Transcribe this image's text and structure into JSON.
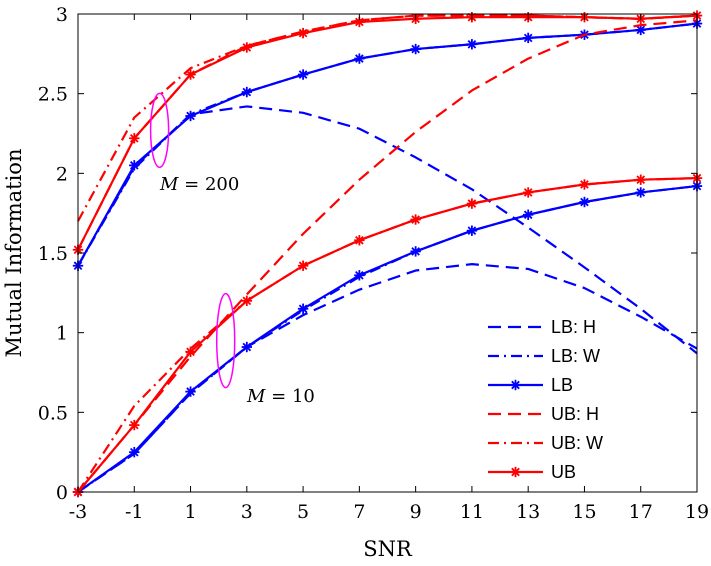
{
  "chart_data": {
    "type": "line",
    "title": "",
    "xlabel": "SNR",
    "ylabel": "Mutual Information",
    "xlim": [
      -3,
      19
    ],
    "ylim": [
      0,
      3
    ],
    "x_ticks": [
      "-3",
      "-1",
      "1",
      "3",
      "5",
      "7",
      "9",
      "11",
      "13",
      "15",
      "17",
      "19"
    ],
    "y_ticks": [
      "0",
      "0.5",
      "1",
      "1.5",
      "2",
      "2.5",
      "3"
    ],
    "grid": false,
    "legend_position": "lower-right",
    "x": [
      -3,
      -1,
      1,
      3,
      5,
      7,
      9,
      11,
      13,
      15,
      17,
      19
    ],
    "series": [
      {
        "name": "LB: H",
        "color": "#0000ff",
        "style": "dashed",
        "marker": "none",
        "group": "M=200",
        "values": [
          1.42,
          2.04,
          2.37,
          2.42,
          2.38,
          2.28,
          2.1,
          1.9,
          1.66,
          1.41,
          1.15,
          0.87
        ]
      },
      {
        "name": "LB: W",
        "color": "#0000ff",
        "style": "dashdot",
        "marker": "none",
        "group": "M=200",
        "values": [
          1.42,
          2.03,
          2.37,
          2.51,
          2.62,
          2.72,
          2.78,
          2.81,
          2.85,
          2.87,
          2.9,
          2.94
        ]
      },
      {
        "name": "LB",
        "color": "#0000ff",
        "style": "solid",
        "marker": "asterisk",
        "group": "M=200",
        "values": [
          1.42,
          2.05,
          2.36,
          2.51,
          2.62,
          2.72,
          2.78,
          2.81,
          2.85,
          2.87,
          2.9,
          2.94
        ]
      },
      {
        "name": "UB: H",
        "color": "#ff0000",
        "style": "dashed",
        "marker": "none",
        "group": "M=200",
        "values": [
          1.52,
          2.22,
          2.62,
          2.8,
          2.89,
          2.96,
          2.99,
          2.99,
          2.99,
          2.98,
          2.97,
          2.99
        ]
      },
      {
        "name": "UB: W",
        "color": "#ff0000",
        "style": "dashdot",
        "marker": "none",
        "group": "M=200",
        "values": [
          1.7,
          2.35,
          2.66,
          2.8,
          2.89,
          2.96,
          2.99,
          2.99,
          2.99,
          2.98,
          2.97,
          2.99
        ]
      },
      {
        "name": "UB",
        "color": "#ff0000",
        "style": "solid",
        "marker": "asterisk",
        "group": "M=200",
        "values": [
          1.52,
          2.22,
          2.62,
          2.79,
          2.88,
          2.95,
          2.97,
          2.98,
          2.98,
          2.98,
          2.97,
          2.99
        ]
      },
      {
        "name": "LB: H",
        "color": "#0000ff",
        "style": "dashed",
        "marker": "none",
        "group": "M=10",
        "values": [
          0.0,
          0.24,
          0.62,
          0.91,
          1.11,
          1.27,
          1.39,
          1.43,
          1.4,
          1.28,
          1.1,
          0.9
        ]
      },
      {
        "name": "LB: W",
        "color": "#0000ff",
        "style": "dashdot",
        "marker": "none",
        "group": "M=10",
        "values": [
          0.0,
          0.24,
          0.62,
          0.91,
          1.14,
          1.35,
          1.51,
          1.64,
          1.74,
          1.82,
          1.88,
          1.92
        ]
      },
      {
        "name": "LB",
        "color": "#0000ff",
        "style": "solid",
        "marker": "asterisk",
        "group": "M=10",
        "values": [
          0.0,
          0.25,
          0.63,
          0.91,
          1.15,
          1.36,
          1.51,
          1.64,
          1.74,
          1.82,
          1.88,
          1.92
        ]
      },
      {
        "name": "UB: H",
        "color": "#ff0000",
        "style": "dashed",
        "marker": "none",
        "group": "M=10",
        "values": [
          0.0,
          0.42,
          0.85,
          1.24,
          1.62,
          1.96,
          2.26,
          2.52,
          2.72,
          2.87,
          2.93,
          2.96
        ]
      },
      {
        "name": "UB: W",
        "color": "#ff0000",
        "style": "dashdot",
        "marker": "none",
        "group": "M=10",
        "values": [
          0.0,
          0.54,
          0.9,
          1.2,
          1.42,
          1.58,
          1.71,
          1.81,
          1.88,
          1.93,
          1.96,
          1.97
        ]
      },
      {
        "name": "UB",
        "color": "#ff0000",
        "style": "solid",
        "marker": "asterisk",
        "group": "M=10",
        "values": [
          0.0,
          0.42,
          0.88,
          1.2,
          1.42,
          1.58,
          1.71,
          1.81,
          1.88,
          1.93,
          1.96,
          1.97
        ]
      }
    ],
    "legend": [
      {
        "label": "LB: H",
        "color": "#0000ff",
        "style": "dashed",
        "marker": "none"
      },
      {
        "label": "LB: W",
        "color": "#0000ff",
        "style": "dashdot",
        "marker": "none"
      },
      {
        "label": "LB",
        "color": "#0000ff",
        "style": "solid",
        "marker": "asterisk"
      },
      {
        "label": "UB: H",
        "color": "#ff0000",
        "style": "dashed",
        "marker": "none"
      },
      {
        "label": "UB: W",
        "color": "#ff0000",
        "style": "dashdot",
        "marker": "none"
      },
      {
        "label": "UB",
        "color": "#ff0000",
        "style": "solid",
        "marker": "asterisk"
      }
    ],
    "annotations": [
      {
        "id": "m200",
        "text_var": "M",
        "text_rest": " = 200",
        "ellipse_color": "#ff00ff",
        "ellipse_center_data": [
          -0.1,
          2.27
        ]
      },
      {
        "id": "m10",
        "text_var": "M",
        "text_rest": " = 10",
        "ellipse_color": "#ff00ff",
        "ellipse_center_data": [
          2.25,
          0.95
        ]
      }
    ]
  }
}
